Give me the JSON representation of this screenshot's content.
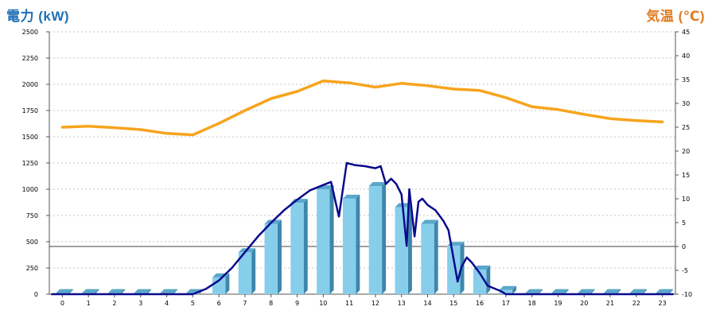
{
  "chart_data": {
    "type": "bar+line",
    "left_axis_title": "電力 (kW)",
    "right_axis_title": "気温 (℃)",
    "left_ylim": [
      0,
      2500
    ],
    "left_ticks": [
      0,
      250,
      500,
      750,
      1000,
      1250,
      1500,
      1750,
      2000,
      2250,
      2500
    ],
    "right_ylim": [
      -10,
      45
    ],
    "right_ticks": [
      -10,
      -5,
      0,
      5,
      10,
      15,
      20,
      25,
      30,
      35,
      40,
      45
    ],
    "categories": [
      "0",
      "1",
      "2",
      "3",
      "4",
      "5",
      "6",
      "7",
      "8",
      "9",
      "10",
      "11",
      "12",
      "13",
      "14",
      "15",
      "16",
      "17",
      "18",
      "19",
      "20",
      "21",
      "22",
      "23"
    ],
    "grid": true,
    "series": [
      {
        "kind": "bar",
        "axis": "left",
        "color": "#87ceeb",
        "values": [
          10,
          10,
          10,
          10,
          10,
          10,
          160,
          400,
          670,
          870,
          1000,
          910,
          1030,
          830,
          670,
          460,
          235,
          40,
          10,
          10,
          10,
          10,
          10,
          10
        ]
      },
      {
        "kind": "line",
        "axis": "left",
        "color": "#0a0a8c",
        "points": [
          [
            -0.4,
            0
          ],
          [
            0,
            0
          ],
          [
            1,
            0
          ],
          [
            2,
            0
          ],
          [
            3,
            0
          ],
          [
            4,
            0
          ],
          [
            5,
            0
          ],
          [
            5.5,
            50
          ],
          [
            6,
            130
          ],
          [
            6.5,
            250
          ],
          [
            7,
            400
          ],
          [
            7.5,
            550
          ],
          [
            8,
            680
          ],
          [
            8.5,
            800
          ],
          [
            9,
            900
          ],
          [
            9.5,
            990
          ],
          [
            10,
            1040
          ],
          [
            10.3,
            1070
          ],
          [
            10.6,
            740
          ],
          [
            10.9,
            1250
          ],
          [
            11.2,
            1230
          ],
          [
            11.6,
            1220
          ],
          [
            12,
            1200
          ],
          [
            12.2,
            1220
          ],
          [
            12.4,
            1050
          ],
          [
            12.6,
            1100
          ],
          [
            12.8,
            1050
          ],
          [
            13,
            950
          ],
          [
            13.2,
            460
          ],
          [
            13.3,
            1000
          ],
          [
            13.5,
            550
          ],
          [
            13.65,
            880
          ],
          [
            13.8,
            910
          ],
          [
            14,
            850
          ],
          [
            14.3,
            800
          ],
          [
            14.6,
            700
          ],
          [
            14.8,
            610
          ],
          [
            15,
            330
          ],
          [
            15.15,
            120
          ],
          [
            15.3,
            260
          ],
          [
            15.5,
            350
          ],
          [
            15.7,
            300
          ],
          [
            16,
            200
          ],
          [
            16.3,
            80
          ],
          [
            16.6,
            50
          ],
          [
            16.8,
            30
          ],
          [
            17,
            0
          ],
          [
            18,
            0
          ],
          [
            19,
            0
          ],
          [
            20,
            0
          ],
          [
            21,
            0
          ],
          [
            22,
            0
          ],
          [
            23,
            0
          ],
          [
            23.4,
            0
          ]
        ]
      },
      {
        "kind": "line",
        "axis": "right",
        "color": "#f7a41d",
        "points": [
          [
            0,
            25
          ],
          [
            1,
            25.2
          ],
          [
            2,
            24.9
          ],
          [
            3,
            24.5
          ],
          [
            4,
            23.7
          ],
          [
            5,
            23.4
          ],
          [
            6,
            25.8
          ],
          [
            7,
            28.5
          ],
          [
            8,
            31
          ],
          [
            9,
            32.5
          ],
          [
            10,
            34.7
          ],
          [
            11,
            34.3
          ],
          [
            12,
            33.4
          ],
          [
            13,
            34.2
          ],
          [
            14,
            33.7
          ],
          [
            15,
            33
          ],
          [
            16,
            32.7
          ],
          [
            17,
            31.2
          ],
          [
            18,
            29.3
          ],
          [
            19,
            28.7
          ],
          [
            20,
            27.7
          ],
          [
            21,
            26.8
          ],
          [
            22,
            26.4
          ],
          [
            23,
            26.1
          ]
        ]
      }
    ]
  }
}
